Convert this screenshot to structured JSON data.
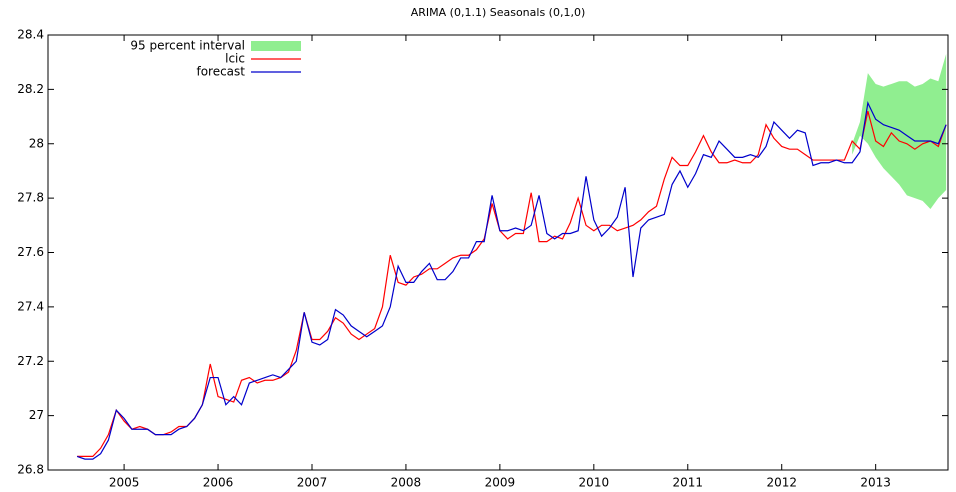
{
  "chart_data": {
    "type": "line",
    "title": "ARIMA (0,1.1)  Seasonals (0,1,0)",
    "xlim": [
      2004.19,
      2013.77
    ],
    "ylim": [
      26.8,
      28.4
    ],
    "xticks": [
      2005,
      2006,
      2007,
      2008,
      2009,
      2010,
      2011,
      2012,
      2013
    ],
    "yticks": [
      26.8,
      27,
      27.2,
      27.4,
      27.6,
      27.8,
      28,
      28.2,
      28.4
    ],
    "legend": "top-left",
    "x": [
      2004.5,
      2004.583,
      2004.667,
      2004.75,
      2004.833,
      2004.917,
      2005,
      2005.083,
      2005.167,
      2005.25,
      2005.333,
      2005.417,
      2005.5,
      2005.583,
      2005.667,
      2005.75,
      2005.833,
      2005.917,
      2006,
      2006.083,
      2006.167,
      2006.25,
      2006.333,
      2006.417,
      2006.5,
      2006.583,
      2006.667,
      2006.75,
      2006.833,
      2006.917,
      2007,
      2007.083,
      2007.167,
      2007.25,
      2007.333,
      2007.417,
      2007.5,
      2007.583,
      2007.667,
      2007.75,
      2007.833,
      2007.917,
      2008,
      2008.083,
      2008.167,
      2008.25,
      2008.333,
      2008.417,
      2008.5,
      2008.583,
      2008.667,
      2008.75,
      2008.833,
      2008.917,
      2009,
      2009.083,
      2009.167,
      2009.25,
      2009.333,
      2009.417,
      2009.5,
      2009.583,
      2009.667,
      2009.75,
      2009.833,
      2009.917,
      2010,
      2010.083,
      2010.167,
      2010.25,
      2010.333,
      2010.417,
      2010.5,
      2010.583,
      2010.667,
      2010.75,
      2010.833,
      2010.917,
      2011,
      2011.083,
      2011.167,
      2011.25,
      2011.333,
      2011.417,
      2011.5,
      2011.583,
      2011.667,
      2011.75,
      2011.833,
      2011.917,
      2012,
      2012.083,
      2012.167,
      2012.25,
      2012.333,
      2012.417,
      2012.5,
      2012.583,
      2012.667,
      2012.75,
      2012.833,
      2012.917,
      2013,
      2013.083,
      2013.167,
      2013.25,
      2013.333,
      2013.417,
      2013.5,
      2013.583,
      2013.667,
      2013.75
    ],
    "band": {
      "name": "95 percent interval",
      "color": "#90ee90",
      "x": [
        2012.75,
        2012.833,
        2012.917,
        2013,
        2013.083,
        2013.167,
        2013.25,
        2013.333,
        2013.417,
        2013.5,
        2013.583,
        2013.667,
        2013.75
      ],
      "lower": [
        27.96,
        28.03,
        28.0,
        27.95,
        27.91,
        27.88,
        27.85,
        27.81,
        27.8,
        27.79,
        27.76,
        27.8,
        27.83
      ],
      "upper": [
        28.0,
        28.08,
        28.26,
        28.22,
        28.21,
        28.22,
        28.23,
        28.23,
        28.21,
        28.22,
        28.24,
        28.23,
        28.33
      ]
    },
    "series": [
      {
        "name": "lcic",
        "color": "#ff0000",
        "values": [
          26.85,
          26.85,
          26.85,
          26.88,
          26.93,
          27.02,
          26.98,
          26.95,
          26.96,
          26.95,
          26.93,
          26.93,
          26.94,
          26.96,
          26.96,
          26.99,
          27.04,
          27.19,
          27.07,
          27.06,
          27.05,
          27.13,
          27.14,
          27.12,
          27.13,
          27.13,
          27.14,
          27.16,
          27.24,
          27.38,
          27.28,
          27.28,
          27.31,
          27.36,
          27.34,
          27.3,
          27.28,
          27.3,
          27.32,
          27.4,
          27.59,
          27.49,
          27.48,
          27.51,
          27.52,
          27.54,
          27.54,
          27.56,
          27.58,
          27.59,
          27.59,
          27.61,
          27.65,
          27.78,
          27.68,
          27.65,
          27.67,
          27.67,
          27.82,
          27.64,
          27.64,
          27.66,
          27.65,
          27.71,
          27.8,
          27.7,
          27.68,
          27.7,
          27.7,
          27.68,
          27.69,
          27.7,
          27.72,
          27.75,
          27.77,
          27.87,
          27.95,
          27.92,
          27.92,
          27.97,
          28.03,
          27.97,
          27.93,
          27.93,
          27.94,
          27.93,
          27.93,
          27.96,
          28.07,
          28.02,
          27.99,
          27.98,
          27.98,
          27.96,
          27.94,
          27.94,
          27.94,
          27.94,
          27.94,
          28.01,
          27.98,
          28.12,
          28.01,
          27.99,
          28.04,
          28.01,
          28.0,
          27.98,
          28.0,
          28.01,
          27.99,
          28.07
        ]
      },
      {
        "name": "forecast",
        "color": "#0000cc",
        "values": [
          26.85,
          26.84,
          26.84,
          26.86,
          26.91,
          27.02,
          26.99,
          26.95,
          26.95,
          26.95,
          26.93,
          26.93,
          26.93,
          26.95,
          26.96,
          26.99,
          27.04,
          27.14,
          27.14,
          27.04,
          27.07,
          27.04,
          27.12,
          27.13,
          27.14,
          27.15,
          27.14,
          27.17,
          27.2,
          27.38,
          27.27,
          27.26,
          27.28,
          27.39,
          27.37,
          27.33,
          27.31,
          27.29,
          27.31,
          27.33,
          27.4,
          27.55,
          27.49,
          27.49,
          27.53,
          27.56,
          27.5,
          27.5,
          27.53,
          27.58,
          27.58,
          27.64,
          27.64,
          27.81,
          27.68,
          27.68,
          27.69,
          27.68,
          27.7,
          27.81,
          27.67,
          27.65,
          27.67,
          27.67,
          27.68,
          27.88,
          27.72,
          27.66,
          27.69,
          27.73,
          27.84,
          27.51,
          27.69,
          27.72,
          27.73,
          27.74,
          27.85,
          27.9,
          27.84,
          27.89,
          27.96,
          27.95,
          28.01,
          27.98,
          27.95,
          27.95,
          27.96,
          27.95,
          27.99,
          28.08,
          28.05,
          28.02,
          28.05,
          28.04,
          27.92,
          27.93,
          27.93,
          27.94,
          27.93,
          27.93,
          27.97,
          28.15,
          28.09,
          28.07,
          28.06,
          28.05,
          28.03,
          28.01,
          28.01,
          28.01,
          28.0,
          28.07
        ]
      }
    ]
  }
}
